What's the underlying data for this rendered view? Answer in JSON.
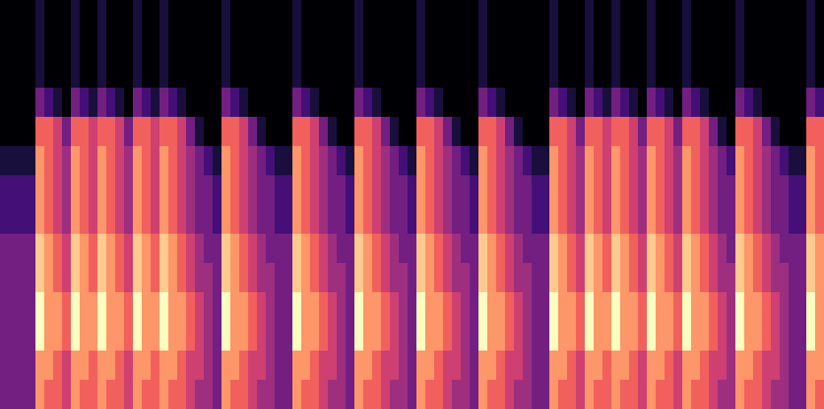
{
  "chart_data": {
    "type": "heatmap",
    "color_range": [
      0,
      9
    ],
    "cells": [
      [
        0,
        0,
        0,
        0,
        1,
        0,
        0,
        0,
        1,
        0,
        0,
        1,
        0,
        0,
        0,
        1,
        0,
        0,
        1,
        0,
        0,
        0,
        0,
        0,
        0,
        1,
        0,
        0,
        0,
        0,
        0,
        0,
        0,
        1,
        0,
        0,
        0,
        0,
        0,
        0,
        1,
        0,
        0,
        0,
        0,
        0,
        0,
        1,
        0,
        0,
        0,
        0,
        0,
        0,
        1,
        0,
        0,
        0,
        0,
        0,
        0,
        0,
        1,
        0,
        0,
        0,
        1,
        0,
        0,
        1,
        0,
        0,
        0,
        1,
        0,
        0,
        0,
        1,
        0,
        0,
        0,
        0,
        0,
        1,
        0,
        0,
        0,
        0,
        0,
        0,
        0,
        1,
        0
      ],
      [
        0,
        0,
        0,
        0,
        1,
        0,
        0,
        0,
        1,
        0,
        0,
        1,
        0,
        0,
        0,
        1,
        0,
        0,
        1,
        0,
        0,
        0,
        0,
        0,
        0,
        1,
        0,
        0,
        0,
        0,
        0,
        0,
        0,
        1,
        0,
        0,
        0,
        0,
        0,
        0,
        1,
        0,
        0,
        0,
        0,
        0,
        0,
        1,
        0,
        0,
        0,
        0,
        0,
        0,
        1,
        0,
        0,
        0,
        0,
        0,
        0,
        0,
        1,
        0,
        0,
        0,
        1,
        0,
        0,
        1,
        0,
        0,
        0,
        1,
        0,
        0,
        0,
        1,
        0,
        0,
        0,
        0,
        0,
        1,
        0,
        0,
        0,
        0,
        0,
        0,
        0,
        1,
        0
      ],
      [
        0,
        0,
        0,
        0,
        1,
        0,
        0,
        0,
        1,
        0,
        0,
        1,
        0,
        0,
        0,
        1,
        0,
        0,
        1,
        0,
        0,
        0,
        0,
        0,
        0,
        1,
        0,
        0,
        0,
        0,
        0,
        0,
        0,
        1,
        0,
        0,
        0,
        0,
        0,
        0,
        1,
        0,
        0,
        0,
        0,
        0,
        0,
        1,
        0,
        0,
        0,
        0,
        0,
        0,
        1,
        0,
        0,
        0,
        0,
        0,
        0,
        0,
        1,
        0,
        0,
        0,
        1,
        0,
        0,
        1,
        0,
        0,
        0,
        1,
        0,
        0,
        0,
        1,
        0,
        0,
        0,
        0,
        0,
        1,
        0,
        0,
        0,
        0,
        0,
        0,
        0,
        1,
        0
      ],
      [
        0,
        0,
        0,
        0,
        3,
        2,
        1,
        0,
        3,
        2,
        1,
        3,
        2,
        1,
        0,
        3,
        2,
        1,
        3,
        2,
        1,
        0,
        0,
        0,
        0,
        3,
        2,
        1,
        0,
        0,
        0,
        0,
        0,
        3,
        2,
        1,
        0,
        0,
        0,
        0,
        3,
        2,
        1,
        0,
        0,
        0,
        0,
        3,
        2,
        1,
        0,
        0,
        0,
        0,
        3,
        2,
        1,
        0,
        0,
        0,
        0,
        0,
        3,
        2,
        1,
        0,
        3,
        2,
        1,
        3,
        2,
        1,
        0,
        3,
        2,
        1,
        0,
        3,
        2,
        1,
        0,
        0,
        0,
        3,
        2,
        1,
        0,
        0,
        0,
        0,
        0,
        3,
        2
      ],
      [
        0,
        0,
        0,
        0,
        6,
        6,
        5,
        3,
        6,
        6,
        5,
        6,
        6,
        5,
        3,
        6,
        6,
        5,
        6,
        6,
        5,
        3,
        1,
        0,
        0,
        6,
        6,
        5,
        3,
        1,
        0,
        0,
        0,
        6,
        6,
        5,
        3,
        1,
        0,
        0,
        6,
        6,
        5,
        3,
        1,
        0,
        0,
        6,
        6,
        5,
        3,
        1,
        0,
        0,
        6,
        6,
        5,
        3,
        1,
        0,
        0,
        0,
        6,
        6,
        5,
        3,
        6,
        6,
        5,
        6,
        6,
        5,
        3,
        6,
        6,
        5,
        3,
        6,
        6,
        5,
        3,
        1,
        0,
        6,
        6,
        5,
        3,
        1,
        0,
        0,
        0,
        6,
        6
      ],
      [
        1,
        1,
        1,
        1,
        7,
        6,
        5,
        4,
        7,
        6,
        5,
        7,
        6,
        5,
        4,
        7,
        6,
        5,
        7,
        6,
        5,
        4,
        3,
        2,
        1,
        7,
        6,
        5,
        4,
        3,
        2,
        1,
        1,
        7,
        6,
        5,
        4,
        3,
        2,
        1,
        7,
        6,
        5,
        4,
        3,
        2,
        1,
        7,
        6,
        5,
        4,
        3,
        2,
        1,
        7,
        6,
        5,
        4,
        3,
        2,
        1,
        1,
        7,
        6,
        5,
        4,
        7,
        6,
        5,
        7,
        6,
        5,
        4,
        7,
        6,
        5,
        4,
        7,
        6,
        5,
        4,
        3,
        2,
        7,
        6,
        5,
        4,
        3,
        2,
        1,
        1,
        7,
        6
      ],
      [
        2,
        2,
        2,
        2,
        7,
        6,
        5,
        4,
        7,
        6,
        5,
        7,
        6,
        5,
        4,
        7,
        6,
        5,
        7,
        6,
        5,
        4,
        3,
        3,
        2,
        7,
        6,
        5,
        4,
        3,
        3,
        2,
        2,
        7,
        6,
        5,
        4,
        3,
        3,
        2,
        7,
        6,
        5,
        4,
        3,
        3,
        2,
        7,
        6,
        5,
        4,
        3,
        3,
        2,
        7,
        6,
        5,
        4,
        3,
        3,
        2,
        2,
        7,
        6,
        5,
        4,
        7,
        6,
        5,
        7,
        6,
        5,
        4,
        7,
        6,
        5,
        4,
        7,
        6,
        5,
        4,
        3,
        3,
        7,
        6,
        5,
        4,
        3,
        3,
        2,
        2,
        7,
        6
      ],
      [
        2,
        2,
        2,
        2,
        7,
        6,
        5,
        4,
        7,
        6,
        5,
        7,
        6,
        5,
        4,
        7,
        6,
        5,
        7,
        6,
        5,
        4,
        3,
        3,
        2,
        7,
        6,
        5,
        4,
        3,
        3,
        2,
        2,
        7,
        6,
        5,
        4,
        3,
        3,
        2,
        7,
        6,
        5,
        4,
        3,
        3,
        2,
        7,
        6,
        5,
        4,
        3,
        3,
        2,
        7,
        6,
        5,
        4,
        3,
        3,
        2,
        2,
        7,
        6,
        5,
        4,
        7,
        6,
        5,
        7,
        6,
        5,
        4,
        7,
        6,
        5,
        4,
        7,
        6,
        5,
        4,
        3,
        3,
        7,
        6,
        5,
        4,
        3,
        3,
        2,
        2,
        7,
        6
      ],
      [
        3,
        3,
        3,
        3,
        8,
        7,
        6,
        5,
        8,
        7,
        6,
        8,
        7,
        6,
        5,
        8,
        7,
        6,
        8,
        7,
        6,
        5,
        4,
        3,
        3,
        8,
        7,
        6,
        5,
        4,
        3,
        3,
        3,
        8,
        7,
        6,
        5,
        4,
        3,
        3,
        8,
        7,
        6,
        5,
        4,
        3,
        3,
        8,
        7,
        6,
        5,
        4,
        3,
        3,
        8,
        7,
        6,
        5,
        4,
        3,
        3,
        3,
        8,
        7,
        6,
        5,
        8,
        7,
        6,
        8,
        7,
        6,
        5,
        8,
        7,
        6,
        5,
        8,
        7,
        6,
        5,
        4,
        3,
        8,
        7,
        6,
        5,
        4,
        3,
        3,
        3,
        8,
        7
      ],
      [
        3,
        3,
        3,
        3,
        8,
        7,
        6,
        5,
        8,
        7,
        6,
        8,
        7,
        6,
        5,
        8,
        7,
        6,
        8,
        7,
        6,
        5,
        4,
        4,
        3,
        8,
        7,
        6,
        5,
        4,
        4,
        3,
        3,
        8,
        7,
        6,
        5,
        4,
        4,
        3,
        8,
        7,
        6,
        5,
        4,
        4,
        3,
        8,
        7,
        6,
        5,
        4,
        4,
        3,
        8,
        7,
        6,
        5,
        4,
        4,
        3,
        3,
        8,
        7,
        6,
        5,
        8,
        7,
        6,
        8,
        7,
        6,
        5,
        8,
        7,
        6,
        5,
        8,
        7,
        6,
        5,
        4,
        4,
        8,
        7,
        6,
        5,
        4,
        4,
        3,
        3,
        8,
        7
      ],
      [
        3,
        3,
        3,
        3,
        9,
        7,
        7,
        6,
        9,
        7,
        7,
        9,
        7,
        7,
        6,
        9,
        7,
        7,
        9,
        7,
        7,
        6,
        5,
        4,
        3,
        9,
        7,
        7,
        6,
        5,
        4,
        3,
        3,
        9,
        7,
        7,
        6,
        5,
        4,
        3,
        9,
        7,
        7,
        6,
        5,
        4,
        3,
        9,
        7,
        7,
        6,
        5,
        4,
        3,
        9,
        7,
        7,
        6,
        5,
        4,
        3,
        3,
        9,
        7,
        7,
        6,
        9,
        7,
        7,
        9,
        7,
        7,
        6,
        9,
        7,
        7,
        6,
        9,
        7,
        7,
        6,
        5,
        4,
        9,
        7,
        7,
        6,
        5,
        4,
        3,
        3,
        9,
        7
      ],
      [
        3,
        3,
        3,
        3,
        9,
        7,
        7,
        6,
        9,
        7,
        7,
        9,
        7,
        7,
        6,
        9,
        7,
        7,
        9,
        7,
        7,
        6,
        5,
        4,
        3,
        9,
        7,
        7,
        6,
        5,
        4,
        3,
        3,
        9,
        7,
        7,
        6,
        5,
        4,
        3,
        9,
        7,
        7,
        6,
        5,
        4,
        3,
        9,
        7,
        7,
        6,
        5,
        4,
        3,
        9,
        7,
        7,
        6,
        5,
        4,
        3,
        3,
        9,
        7,
        7,
        6,
        9,
        7,
        7,
        9,
        7,
        7,
        6,
        9,
        7,
        7,
        6,
        9,
        7,
        7,
        6,
        5,
        4,
        9,
        7,
        7,
        6,
        5,
        4,
        3,
        3,
        9,
        7
      ],
      [
        3,
        3,
        3,
        3,
        7,
        7,
        6,
        5,
        7,
        7,
        6,
        7,
        7,
        6,
        5,
        7,
        7,
        6,
        7,
        7,
        6,
        5,
        5,
        4,
        3,
        7,
        7,
        6,
        5,
        5,
        4,
        3,
        3,
        7,
        7,
        6,
        5,
        5,
        4,
        3,
        7,
        7,
        6,
        5,
        5,
        4,
        3,
        7,
        7,
        6,
        5,
        5,
        4,
        3,
        7,
        7,
        6,
        5,
        5,
        4,
        3,
        3,
        7,
        7,
        6,
        5,
        7,
        7,
        6,
        7,
        7,
        6,
        5,
        7,
        7,
        6,
        5,
        7,
        7,
        6,
        5,
        5,
        4,
        7,
        7,
        6,
        5,
        5,
        4,
        3,
        3,
        7,
        7
      ],
      [
        3,
        3,
        3,
        3,
        7,
        6,
        6,
        5,
        7,
        6,
        6,
        7,
        6,
        6,
        5,
        7,
        6,
        6,
        7,
        6,
        6,
        5,
        4,
        4,
        3,
        7,
        6,
        6,
        5,
        4,
        4,
        3,
        3,
        7,
        6,
        6,
        5,
        4,
        4,
        3,
        7,
        6,
        6,
        5,
        4,
        4,
        3,
        7,
        6,
        6,
        5,
        4,
        4,
        3,
        7,
        6,
        6,
        5,
        4,
        4,
        3,
        3,
        7,
        6,
        6,
        5,
        7,
        6,
        6,
        7,
        6,
        6,
        5,
        7,
        6,
        6,
        5,
        7,
        6,
        6,
        5,
        4,
        4,
        7,
        6,
        6,
        5,
        4,
        4,
        3,
        3,
        7,
        6
      ]
    ]
  }
}
